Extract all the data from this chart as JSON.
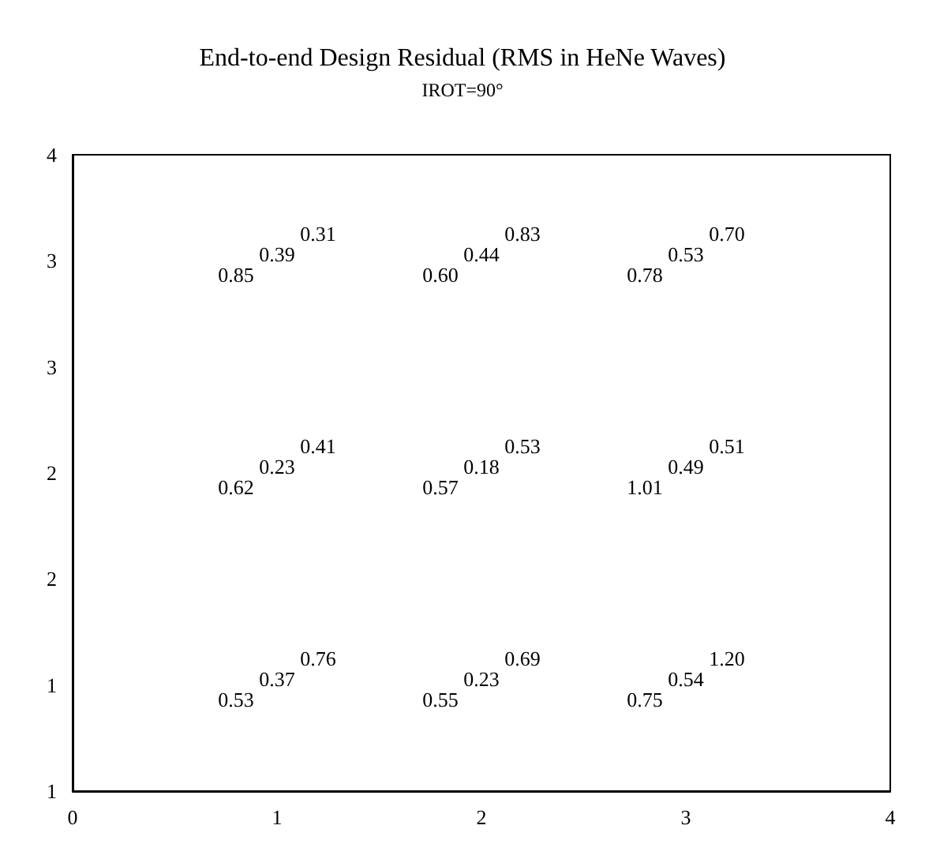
{
  "chart_data": {
    "type": "scatter",
    "title": "End-to-end Design Residual (RMS in HeNe Waves)",
    "subtitle": "IROT=90°",
    "annotations": [
      "0.85",
      "0.39",
      "0.31",
      "0.60",
      "0.44",
      "0.83",
      "0.78",
      "0.53",
      "0.70",
      "0.62",
      "0.23",
      "0.41",
      "0.57",
      "0.18",
      "0.53",
      "1.01",
      "0.49",
      "0.51",
      "0.53",
      "0.37",
      "0.76",
      "0.55",
      "0.23",
      "0.69",
      "0.75",
      "0.54",
      "1.20"
    ],
    "xlim": [
      0,
      4
    ],
    "xticks": [
      0,
      1,
      2,
      3,
      4
    ],
    "ylim": [
      0.5,
      3.5
    ],
    "yticks": [
      {
        "value": 0.5,
        "label": "1"
      },
      {
        "value": 1,
        "label": "1"
      },
      {
        "value": 1.5,
        "label": "2"
      },
      {
        "value": 2,
        "label": "2"
      },
      {
        "value": 2.5,
        "label": "3"
      },
      {
        "value": 3,
        "label": "3"
      },
      {
        "value": 3.5,
        "label": "4"
      }
    ]
  }
}
